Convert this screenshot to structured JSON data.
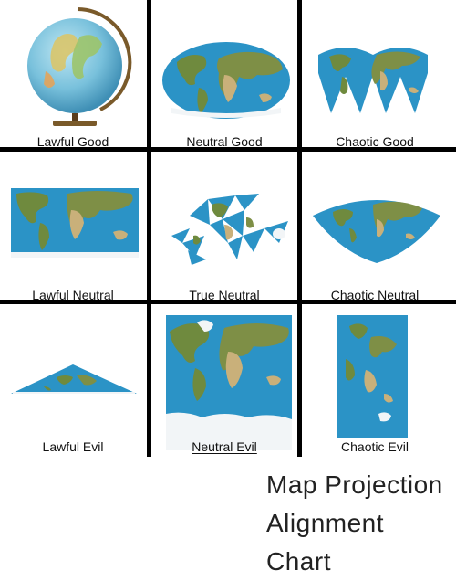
{
  "caption": "Map Projection Alignment Chart",
  "cells": [
    {
      "label": "Lawful Good"
    },
    {
      "label": "Neutral Good"
    },
    {
      "label": "Chaotic Good"
    },
    {
      "label": "Lawful Neutral"
    },
    {
      "label": "True Neutral"
    },
    {
      "label": "Chaotic Neutral"
    },
    {
      "label": "Lawful Evil"
    },
    {
      "label": "Neutral Evil"
    },
    {
      "label": "Chaotic Evil"
    }
  ],
  "colors": {
    "ocean": "#2b93c6",
    "land": "#6f8a3e",
    "desert": "#c9b07a",
    "ice": "#f2f5f7",
    "divider": "#000000"
  }
}
